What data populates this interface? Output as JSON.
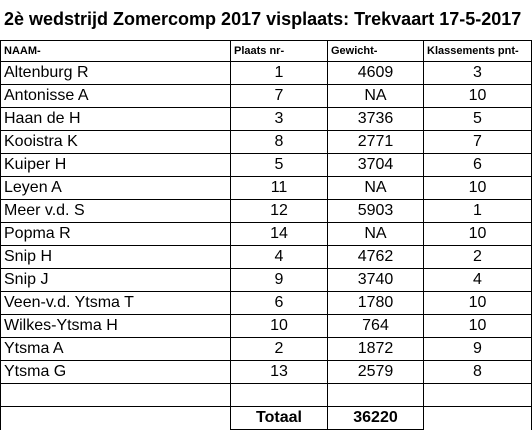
{
  "title": "2è wedstrijd Zomercomp 2017 visplaats: Trekvaart 17-5-2017",
  "headers": {
    "naam": "NAAM-",
    "plaats": "Plaats nr-",
    "gewicht": "Gewicht-",
    "klassement": "Klassements pnt-"
  },
  "rows": [
    {
      "naam": "Altenburg R",
      "plaats": "1",
      "gewicht": "4609",
      "punten": "3"
    },
    {
      "naam": "Antonisse A",
      "plaats": "7",
      "gewicht": "NA",
      "punten": "10"
    },
    {
      "naam": "Haan de H",
      "plaats": "3",
      "gewicht": "3736",
      "punten": "5"
    },
    {
      "naam": "Kooistra K",
      "plaats": "8",
      "gewicht": "2771",
      "punten": "7"
    },
    {
      "naam": "Kuiper H",
      "plaats": "5",
      "gewicht": "3704",
      "punten": "6"
    },
    {
      "naam": "Leyen A",
      "plaats": "11",
      "gewicht": "NA",
      "punten": "10"
    },
    {
      "naam": "Meer v.d. S",
      "plaats": "12",
      "gewicht": "5903",
      "punten": "1"
    },
    {
      "naam": "Popma R",
      "plaats": "14",
      "gewicht": "NA",
      "punten": "10"
    },
    {
      "naam": "Snip H",
      "plaats": "4",
      "gewicht": "4762",
      "punten": "2"
    },
    {
      "naam": "Snip J",
      "plaats": "9",
      "gewicht": "3740",
      "punten": "4"
    },
    {
      "naam": "Veen-v.d. Ytsma T",
      "plaats": "6",
      "gewicht": "1780",
      "punten": "10"
    },
    {
      "naam": "Wilkes-Ytsma H",
      "plaats": "10",
      "gewicht": "764",
      "punten": "10"
    },
    {
      "naam": "Ytsma A",
      "plaats": "2",
      "gewicht": "1872",
      "punten": "9"
    },
    {
      "naam": "Ytsma G",
      "plaats": "13",
      "gewicht": "2579",
      "punten": "8"
    }
  ],
  "total": {
    "label": "Totaal",
    "value": "36220"
  }
}
